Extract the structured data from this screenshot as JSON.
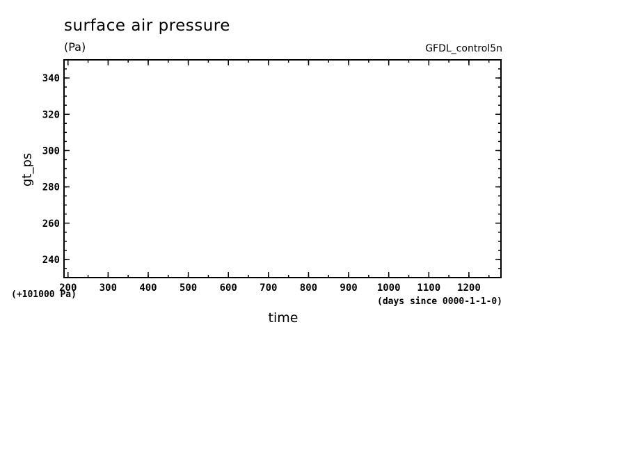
{
  "chart_data": {
    "type": "line",
    "title": "surface air pressure",
    "units": "(Pa)",
    "source_label": "GFDL_control5n",
    "xlabel": "time",
    "ylabel": "gt_ps",
    "x_units": "(days since 0000-1-1-0)",
    "y_offset_label": "(+101000 Pa)",
    "xlim": [
      190,
      1280
    ],
    "ylim": [
      230,
      350
    ],
    "x_ticks": [
      200,
      300,
      400,
      500,
      600,
      700,
      800,
      900,
      1000,
      1100,
      1200
    ],
    "x_minor_step": 50,
    "y_ticks": [
      240,
      260,
      280,
      300,
      320,
      340
    ],
    "y_minor_step": 5,
    "grid": false,
    "series": []
  }
}
